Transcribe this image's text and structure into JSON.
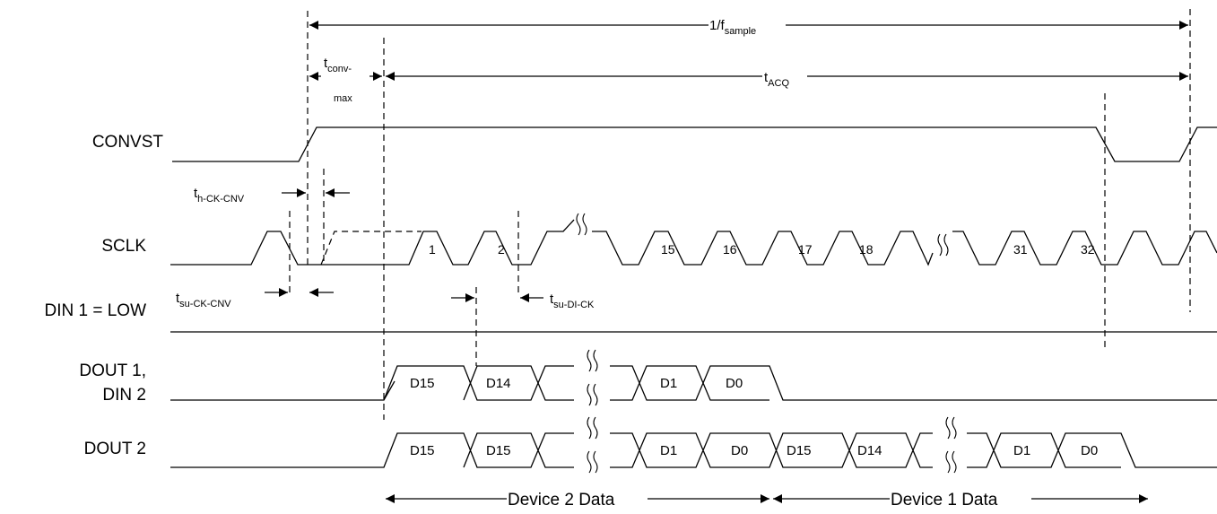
{
  "signals": {
    "convst": "CONVST",
    "sclk": "SCLK",
    "din1": "DIN 1 = LOW",
    "dout1_line1": "DOUT 1,",
    "dout1_line2": "DIN 2",
    "dout2": "DOUT 2"
  },
  "timing": {
    "period_prefix": "1/f",
    "period_sub": "sample",
    "conv_main": "t",
    "conv_sub": "conv-",
    "conv_sub2": "max",
    "acq_main": "t",
    "acq_sub": "ACQ",
    "h_main": "t",
    "h_sub": "h-CK-CNV",
    "su_main": "t",
    "su_sub": "su-CK-CNV",
    "sudi_main": "t",
    "sudi_sub": "su-DI-CK"
  },
  "sclk_pulses": [
    "1",
    "2",
    "15",
    "16",
    "17",
    "18",
    "31",
    "32"
  ],
  "dout1_bits": [
    "D15",
    "D14",
    "D1",
    "D0"
  ],
  "dout2_bits": [
    "D15",
    "D15",
    "D1",
    "D0",
    "D15",
    "D14",
    "D1",
    "D0"
  ],
  "bottom": {
    "device2": "Device 2 Data",
    "device1": "Device 1 Data"
  }
}
